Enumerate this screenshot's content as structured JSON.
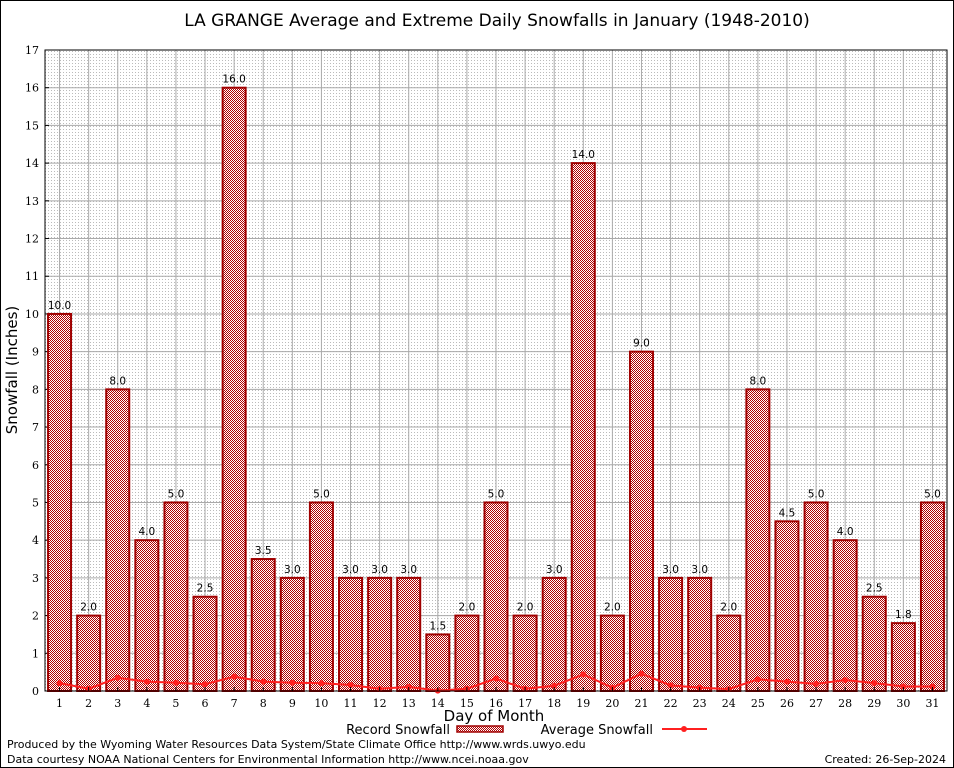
{
  "chart_data": {
    "type": "bar",
    "title": "LA GRANGE Average and Extreme Daily Snowfalls in January (1948-2010)",
    "xlabel": "Day of Month",
    "ylabel": "Snowfall (Inches)",
    "ylim": [
      0,
      17
    ],
    "yticks": [
      "0",
      "1",
      "2",
      "3",
      "4",
      "5",
      "6",
      "7",
      "8",
      "9",
      "10",
      "11",
      "12",
      "13",
      "14",
      "15",
      "16",
      "17"
    ],
    "grid": true,
    "legend_position": "bottom",
    "categories": [
      "1",
      "2",
      "3",
      "4",
      "5",
      "6",
      "7",
      "8",
      "9",
      "10",
      "11",
      "12",
      "13",
      "14",
      "15",
      "16",
      "17",
      "18",
      "19",
      "20",
      "21",
      "22",
      "23",
      "24",
      "25",
      "26",
      "27",
      "28",
      "29",
      "30",
      "31"
    ],
    "series": [
      {
        "name": "Record Snowfall",
        "type": "bar",
        "color": "#a00000",
        "values": [
          10.0,
          2.0,
          8.0,
          4.0,
          5.0,
          2.5,
          16.0,
          3.5,
          3.0,
          5.0,
          3.0,
          3.0,
          3.0,
          1.5,
          2.0,
          5.0,
          2.0,
          3.0,
          14.0,
          2.0,
          9.0,
          3.0,
          3.0,
          2.0,
          8.0,
          4.5,
          5.0,
          4.0,
          2.5,
          1.8,
          5.0
        ],
        "labels": [
          "10.0",
          "2.0",
          "8.0",
          "4.0",
          "5.0",
          "2.5",
          "16.0",
          "3.5",
          "3.0",
          "5.0",
          "3.0",
          "3.0",
          "3.0",
          "1.5",
          "2.0",
          "5.0",
          "2.0",
          "3.0",
          "14.0",
          "2.0",
          "9.0",
          "3.0",
          "3.0",
          "2.0",
          "8.0",
          "4.5",
          "5.0",
          "4.0",
          "2.5",
          "1.8",
          "5.0"
        ]
      },
      {
        "name": "Average Snowfall",
        "type": "line",
        "color": "#ff2020",
        "values": [
          0.21,
          0.06,
          0.35,
          0.25,
          0.22,
          0.18,
          0.38,
          0.25,
          0.22,
          0.21,
          0.16,
          0.06,
          0.11,
          0.01,
          0.06,
          0.33,
          0.06,
          0.14,
          0.44,
          0.09,
          0.46,
          0.15,
          0.09,
          0.05,
          0.31,
          0.25,
          0.19,
          0.29,
          0.21,
          0.12,
          0.12
        ]
      }
    ]
  },
  "footer": {
    "produced_by": "Produced by the Wyoming Water Resources Data System/State Climate Office http://www.wrds.uwyo.edu",
    "courtesy": "Data courtesy NOAA National Centers for Environmental Information http://www.ncei.noaa.gov",
    "created": "Created:  26-Sep-2024"
  }
}
